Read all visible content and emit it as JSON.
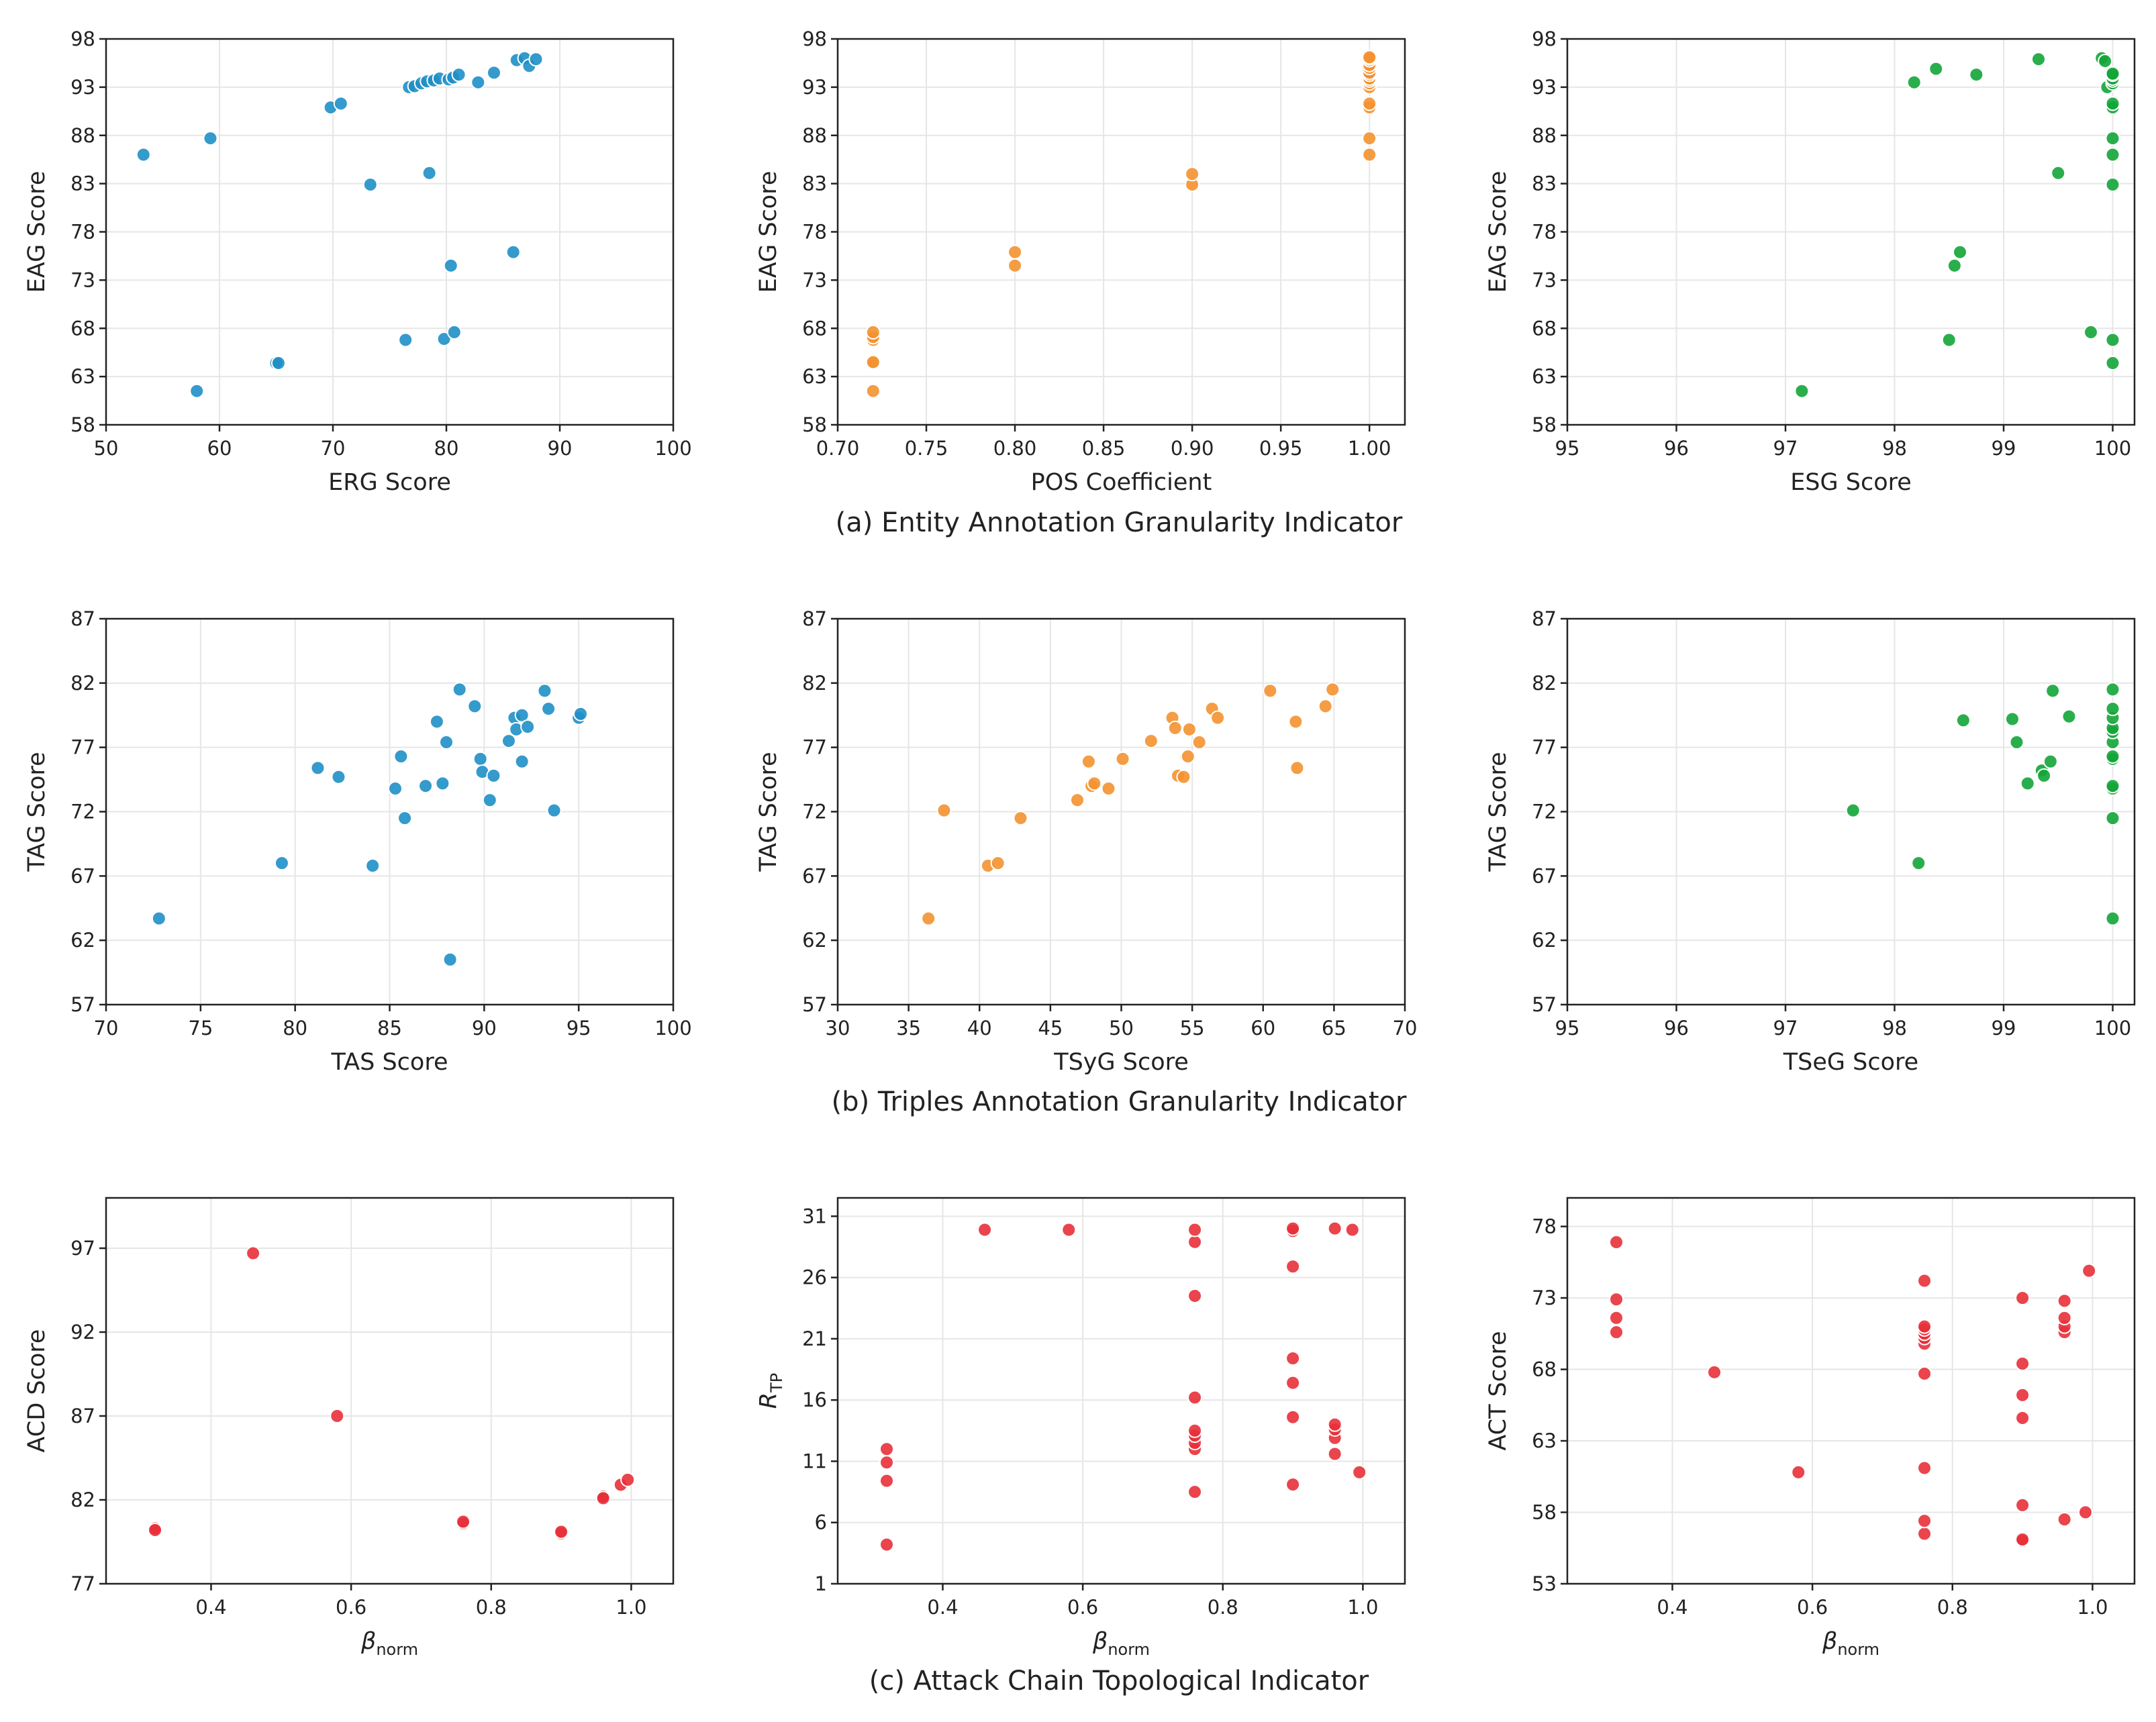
{
  "captions": [
    "(a) Entity Annotation Granularity Indicator",
    "(b) Triples Annotation Granularity Indicator",
    "(c) Attack Chain Topological Indicator"
  ],
  "chart_data": [
    {
      "type": "scatter",
      "color": "#1f8fc7",
      "xlabel": "ERG Score",
      "ylabel": "EAG Score",
      "xlim": [
        50,
        100
      ],
      "ylim": [
        58,
        98
      ],
      "xticks": [
        "50",
        "60",
        "70",
        "80",
        "90",
        "100"
      ],
      "yticks": [
        "58",
        "63",
        "68",
        "73",
        "78",
        "83",
        "88",
        "93",
        "98"
      ],
      "grid": true,
      "x": [
        53.3,
        58,
        59.2,
        65,
        65.2,
        69.8,
        70.7,
        73.3,
        76.4,
        76.7,
        77.2,
        77.8,
        78.3,
        78.5,
        78.9,
        79.4,
        79.8,
        80.2,
        80.4,
        80.6,
        80.7,
        81.1,
        82.8,
        84.2,
        85.9,
        86.2,
        86.9,
        87.3,
        87.9
      ],
      "y": [
        86,
        61.5,
        87.7,
        64.4,
        64.4,
        90.9,
        91.3,
        82.9,
        66.8,
        93,
        93.1,
        93.4,
        93.6,
        84.1,
        93.7,
        93.9,
        66.9,
        93.8,
        74.5,
        94,
        67.6,
        94.3,
        93.5,
        94.5,
        75.9,
        95.8,
        96,
        95.2,
        95.9
      ]
    },
    {
      "type": "scatter",
      "color": "#f39230",
      "xlabel": "POS Coefficient",
      "ylabel": "EAG Score",
      "xlim": [
        0.7,
        1.02
      ],
      "ylim": [
        58,
        98
      ],
      "xticks": [
        "0.70",
        "0.75",
        "0.80",
        "0.85",
        "0.90",
        "0.95",
        "1.00"
      ],
      "yticks": [
        "58",
        "63",
        "68",
        "73",
        "78",
        "83",
        "88",
        "93",
        "98"
      ],
      "grid": true,
      "x": [
        0.72,
        0.72,
        0.72,
        0.72,
        0.72,
        0.72,
        0.8,
        0.8,
        0.9,
        0.9,
        1,
        1,
        1,
        1,
        1,
        1,
        1,
        1,
        1,
        1,
        1,
        1,
        1,
        1,
        1
      ],
      "y": [
        61.5,
        64.4,
        64.5,
        66.8,
        67.1,
        67.6,
        74.5,
        75.9,
        82.9,
        84,
        86,
        87.7,
        90.9,
        91.3,
        93,
        93.4,
        93.7,
        93.9,
        94.3,
        94.5,
        95,
        95.3,
        95.8,
        96,
        96.1
      ]
    },
    {
      "type": "scatter",
      "color": "#13a538",
      "xlabel": "ESG Score",
      "ylabel": "EAG Score",
      "xlim": [
        95,
        100.2
      ],
      "ylim": [
        58,
        98
      ],
      "xticks": [
        "95",
        "96",
        "97",
        "98",
        "99",
        "100"
      ],
      "yticks": [
        "58",
        "63",
        "68",
        "73",
        "78",
        "83",
        "88",
        "93",
        "98"
      ],
      "grid": true,
      "x": [
        97.15,
        98.18,
        98.38,
        98.5,
        98.55,
        98.6,
        98.75,
        99.32,
        99.5,
        99.8,
        99.9,
        99.93,
        99.95,
        100,
        100,
        100,
        100,
        100,
        100,
        100,
        100,
        100,
        100,
        100,
        100
      ],
      "y": [
        61.5,
        93.5,
        94.9,
        66.8,
        74.5,
        75.9,
        94.3,
        95.9,
        84.1,
        67.6,
        96,
        95.7,
        93,
        64.4,
        66.8,
        82.9,
        86,
        87.7,
        90.9,
        91.3,
        93.4,
        93.7,
        93.9,
        94.3,
        94.4
      ]
    },
    {
      "type": "scatter",
      "color": "#1f8fc7",
      "xlabel": "TAS Score",
      "ylabel": "TAG Score",
      "xlim": [
        70,
        100
      ],
      "ylim": [
        57,
        87
      ],
      "xticks": [
        "70",
        "75",
        "80",
        "85",
        "90",
        "95",
        "100"
      ],
      "yticks": [
        "57",
        "62",
        "67",
        "72",
        "77",
        "82",
        "87"
      ],
      "grid": true,
      "x": [
        72.8,
        79.3,
        81.2,
        82.3,
        84.1,
        85.3,
        85.6,
        85.8,
        86.9,
        87.5,
        87.8,
        88,
        88.2,
        88.7,
        89.5,
        89.8,
        89.9,
        90.3,
        90.5,
        91.3,
        91.6,
        91.7,
        92,
        92,
        92.3,
        93.2,
        93.4,
        93.7,
        95,
        95.1
      ],
      "y": [
        63.7,
        68,
        75.4,
        74.7,
        67.8,
        73.8,
        76.3,
        71.5,
        74,
        79,
        74.2,
        77.4,
        60.5,
        81.5,
        80.2,
        76.1,
        75.1,
        72.9,
        74.8,
        77.5,
        79.3,
        78.4,
        75.9,
        79.5,
        78.6,
        81.4,
        80,
        72.1,
        79.3,
        79.6
      ]
    },
    {
      "type": "scatter",
      "color": "#f39230",
      "xlabel": "TSyG Score",
      "ylabel": "TAG Score",
      "xlim": [
        30,
        70
      ],
      "ylim": [
        57,
        87
      ],
      "xticks": [
        "30",
        "35",
        "40",
        "45",
        "50",
        "55",
        "60",
        "65",
        "70"
      ],
      "yticks": [
        "57",
        "62",
        "67",
        "72",
        "77",
        "82",
        "87"
      ],
      "grid": true,
      "x": [
        36.4,
        37.5,
        40.6,
        41.3,
        42.9,
        46.9,
        47.7,
        47.9,
        48.1,
        49.1,
        50.1,
        52.1,
        53.6,
        53.8,
        54,
        54.4,
        54.7,
        54.8,
        55.5,
        56.4,
        56.8,
        60.5,
        62.3,
        62.4,
        64.4,
        64.9
      ],
      "y": [
        63.7,
        72.1,
        67.8,
        68,
        71.5,
        72.9,
        75.9,
        74,
        74.2,
        73.8,
        76.1,
        77.5,
        79.3,
        78.5,
        74.8,
        74.7,
        76.3,
        78.4,
        77.4,
        80,
        79.3,
        81.4,
        79,
        75.4,
        80.2,
        81.5
      ]
    },
    {
      "type": "scatter",
      "color": "#13a538",
      "xlabel": "TSeG Score",
      "ylabel": "TAG Score",
      "xlim": [
        95,
        100.2
      ],
      "ylim": [
        57,
        87
      ],
      "xticks": [
        "95",
        "96",
        "97",
        "98",
        "99",
        "100"
      ],
      "yticks": [
        "57",
        "62",
        "67",
        "72",
        "77",
        "82",
        "87"
      ],
      "grid": true,
      "x": [
        97.62,
        98.22,
        98.63,
        99.08,
        99.12,
        99.22,
        99.35,
        99.37,
        99.43,
        99.45,
        99.6,
        100,
        100,
        100,
        100,
        100,
        100,
        100,
        100,
        100,
        100,
        100,
        100
      ],
      "y": [
        72.1,
        68,
        79.1,
        79.2,
        77.4,
        74.2,
        75.2,
        74.8,
        75.9,
        81.4,
        79.4,
        63.7,
        71.5,
        73.8,
        74,
        76.1,
        76.3,
        77.4,
        78.2,
        78.5,
        79.3,
        80,
        81.5
      ]
    },
    {
      "type": "scatter",
      "color": "#e8303a",
      "xlabel": "β",
      "xlabel_sub": "norm",
      "ylabel": "ACD Score",
      "xlim": [
        0.25,
        1.06
      ],
      "ylim": [
        77,
        100
      ],
      "xticks": [
        "0.4",
        "0.6",
        "0.8",
        "1.0"
      ],
      "xtick_values": [
        0.4,
        0.6,
        0.8,
        1.0
      ],
      "yticks": [
        "77",
        "82",
        "87",
        "92",
        "97"
      ],
      "grid": true,
      "x": [
        0.32,
        0.32,
        0.46,
        0.58,
        0.76,
        0.76,
        0.9,
        0.9,
        0.96,
        0.96,
        0.96,
        0.985,
        0.995
      ],
      "y": [
        80.3,
        80.2,
        96.7,
        87,
        80.6,
        80.7,
        80,
        80.1,
        82.1,
        82.2,
        82.1,
        82.9,
        83.2
      ]
    },
    {
      "type": "scatter",
      "color": "#e8303a",
      "xlabel": "β",
      "xlabel_sub": "norm",
      "ylabel": "R",
      "ylabel_sub": "TP",
      "xlim": [
        0.25,
        1.06
      ],
      "ylim": [
        1,
        32.5
      ],
      "xticks": [
        "0.4",
        "0.6",
        "0.8",
        "1.0"
      ],
      "xtick_values": [
        0.4,
        0.6,
        0.8,
        1.0
      ],
      "yticks": [
        "1",
        "6",
        "11",
        "16",
        "21",
        "26",
        "31"
      ],
      "grid": true,
      "x": [
        0.32,
        0.32,
        0.32,
        0.32,
        0.46,
        0.58,
        0.76,
        0.76,
        0.76,
        0.76,
        0.76,
        0.76,
        0.76,
        0.76,
        0.76,
        0.9,
        0.9,
        0.9,
        0.9,
        0.9,
        0.9,
        0.9,
        0.96,
        0.96,
        0.96,
        0.96,
        0.96,
        0.985,
        0.995
      ],
      "y": [
        4.2,
        9.4,
        10.9,
        12,
        29.9,
        29.9,
        8.5,
        12,
        12.5,
        13.1,
        13.5,
        16.2,
        24.5,
        28.9,
        29.9,
        9.1,
        14.6,
        17.4,
        19.4,
        26.9,
        29.8,
        30,
        11.6,
        12.9,
        13.6,
        14,
        30,
        29.9,
        10.1
      ]
    },
    {
      "type": "scatter",
      "color": "#e8303a",
      "xlabel": "β",
      "xlabel_sub": "norm",
      "ylabel": "ACT Score",
      "xlim": [
        0.25,
        1.06
      ],
      "ylim": [
        53,
        80
      ],
      "xticks": [
        "0.4",
        "0.6",
        "0.8",
        "1.0"
      ],
      "xtick_values": [
        0.4,
        0.6,
        0.8,
        1.0
      ],
      "yticks": [
        "53",
        "58",
        "63",
        "68",
        "73",
        "78"
      ],
      "grid": true,
      "x": [
        0.32,
        0.32,
        0.32,
        0.32,
        0.46,
        0.58,
        0.76,
        0.76,
        0.76,
        0.76,
        0.76,
        0.76,
        0.76,
        0.76,
        0.76,
        0.76,
        0.9,
        0.9,
        0.9,
        0.9,
        0.9,
        0.9,
        0.9,
        0.96,
        0.96,
        0.96,
        0.96,
        0.96,
        0.99,
        0.995
      ],
      "y": [
        70.6,
        71.6,
        72.9,
        76.9,
        67.8,
        60.8,
        56.5,
        57.4,
        61.1,
        67.7,
        69.8,
        70.2,
        70.5,
        70.8,
        71,
        74.2,
        56,
        56.1,
        58.5,
        64.6,
        66.2,
        68.4,
        73,
        57.5,
        70.6,
        71,
        71.6,
        72.8,
        58,
        74.9
      ]
    }
  ]
}
